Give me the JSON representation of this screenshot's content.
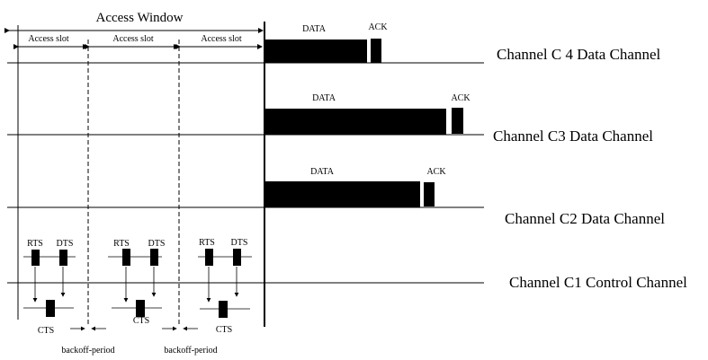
{
  "diagram": {
    "title": "Access Window",
    "slots": [
      "Access slot",
      "Access slot",
      "Access slot"
    ],
    "channels": {
      "c4": "Channel C 4 Data Channel",
      "c3": "Channel C3 Data Channel",
      "c2": "Channel C2 Data Channel",
      "c1": "Channel C1 Control Channel"
    },
    "frame_labels": {
      "data": "DATA",
      "ack": "ACK"
    },
    "control_labels": {
      "rts": "RTS",
      "dts": "DTS",
      "cts": "CTS"
    },
    "backoff": [
      "backoff-period",
      "backoff-period"
    ]
  }
}
